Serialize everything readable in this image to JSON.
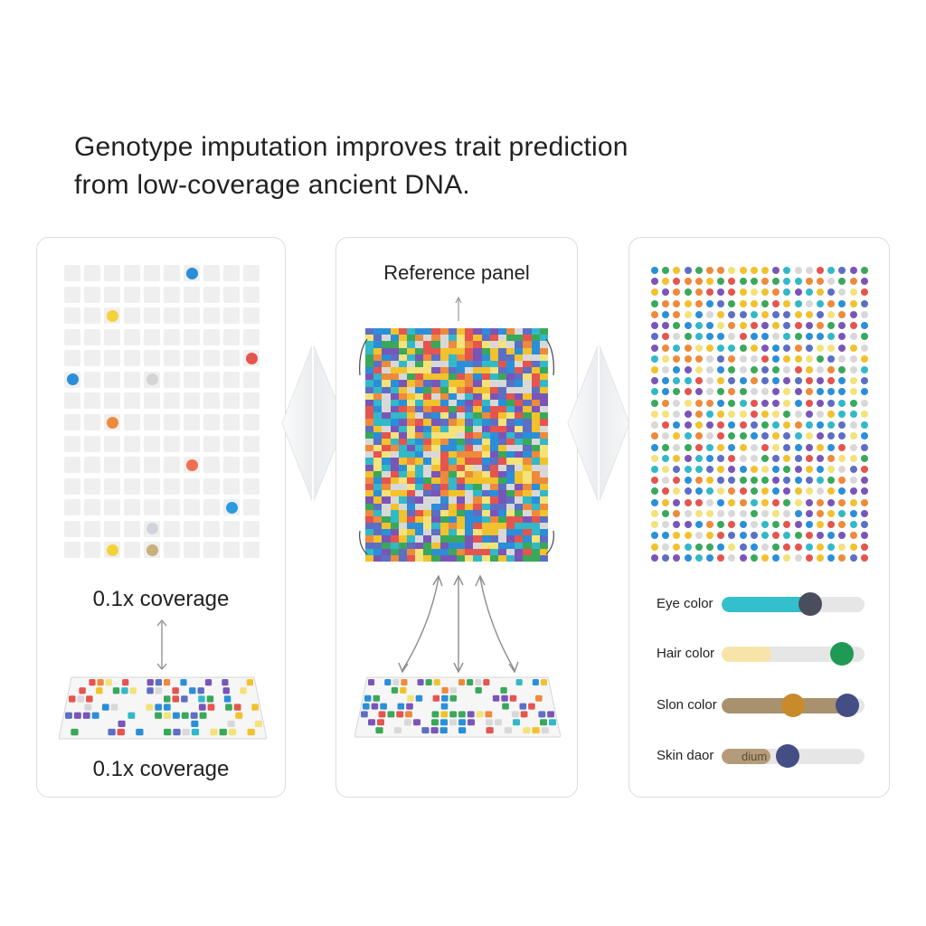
{
  "title": {
    "line1": "Genotype imputation improves trait prediction",
    "line2": "from low-coverage ancient DNA."
  },
  "left_panel": {
    "coverage_label_top": "0.1x coverage",
    "coverage_label_bottom": "0.1x coverage",
    "sparse_grid": {
      "rows": 14,
      "cols": 10,
      "called_genotypes": [
        {
          "row": 0,
          "col": 6,
          "color": "#2a8fd8"
        },
        {
          "row": 2,
          "col": 2,
          "color": "#f2d33a"
        },
        {
          "row": 4,
          "col": 9,
          "color": "#e4554e"
        },
        {
          "row": 5,
          "col": 0,
          "color": "#2a8fd8"
        },
        {
          "row": 5,
          "col": 4,
          "color": "#d4d4d4"
        },
        {
          "row": 7,
          "col": 2,
          "color": "#ee8a3c"
        },
        {
          "row": 9,
          "col": 6,
          "color": "#ee7050"
        },
        {
          "row": 11,
          "col": 8,
          "color": "#2a9be0"
        },
        {
          "row": 12,
          "col": 4,
          "color": "#d0d4da"
        },
        {
          "row": 13,
          "col": 2,
          "color": "#f2d33a"
        },
        {
          "row": 13,
          "col": 4,
          "color": "#c9b07a"
        }
      ]
    }
  },
  "middle_panel": {
    "title": "Reference panel"
  },
  "right_panel": {
    "traits": [
      {
        "label": "Eye color",
        "fill_color": "#33c0cc",
        "fill_fraction": 0.62,
        "fill_text": "",
        "thumb_color": "#4a4e5c",
        "thumb_position": 0.62,
        "second_thumb_color": "",
        "second_thumb_position": null
      },
      {
        "label": "Hair color",
        "fill_color": "#f7e4a8",
        "fill_fraction": 0.35,
        "fill_text": "",
        "thumb_color": "#1f9a55",
        "thumb_position": 0.84,
        "second_thumb_color": "",
        "second_thumb_position": null
      },
      {
        "label": "Slon color",
        "fill_color": "#a8916e",
        "fill_fraction": 0.86,
        "fill_text": "",
        "thumb_color": "#c98a2c",
        "thumb_position": 0.5,
        "second_thumb_color": "#454d85",
        "second_thumb_position": 0.88
      },
      {
        "label": "Skin daor",
        "fill_color": "#b49c7a",
        "fill_fraction": 0.34,
        "fill_text": "dium",
        "thumb_color": "#454d85",
        "thumb_position": 0.46,
        "second_thumb_color": "",
        "second_thumb_position": null
      }
    ]
  },
  "colors": {
    "genotype_palette": [
      "#2a8fd8",
      "#f2c12e",
      "#e4554e",
      "#3aa85a",
      "#7a55b8",
      "#ee8a3c",
      "#5c6fc4",
      "#d8d8d8",
      "#f4e27a",
      "#33b8c8"
    ]
  },
  "icons": {
    "flow_arrow_left": "diamond-arrow-icon",
    "flow_arrow_right": "diamond-arrow-icon"
  }
}
